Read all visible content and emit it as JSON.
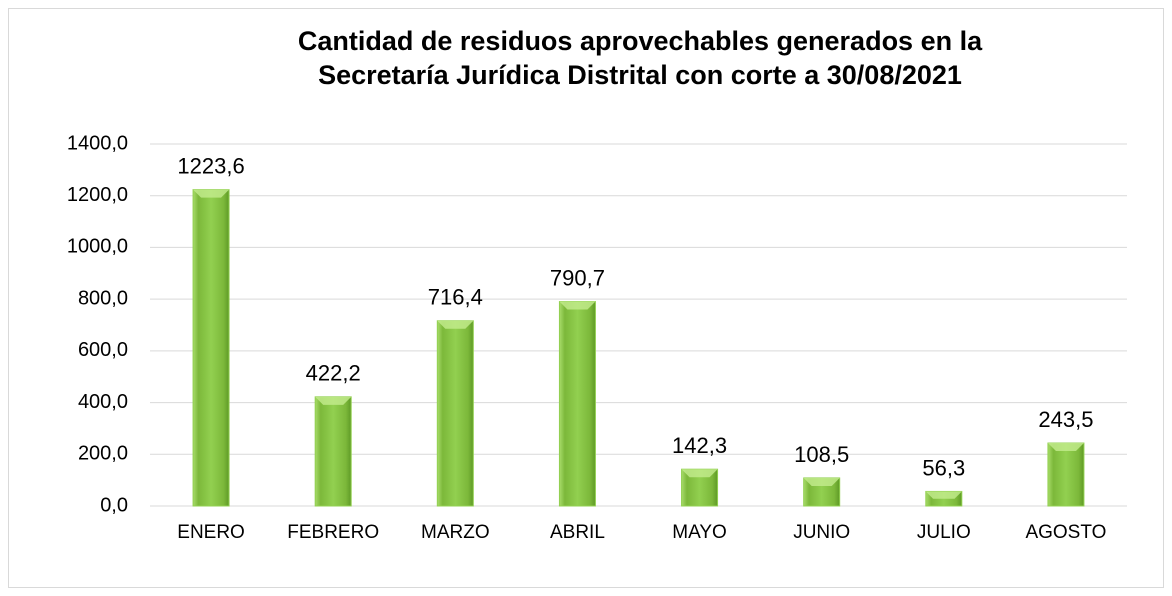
{
  "chart_data": {
    "type": "bar",
    "title": [
      "Cantidad de residuos aprovechables generados en la",
      "Secretaría Jurídica Distrital con corte a 30/08/2021"
    ],
    "categories": [
      "ENERO",
      "FEBRERO",
      "MARZO",
      "ABRIL",
      "MAYO",
      "JUNIO",
      "JULIO",
      "AGOSTO"
    ],
    "values": [
      1223.6,
      422.2,
      716.4,
      790.7,
      142.3,
      108.5,
      56.3,
      243.5
    ],
    "value_labels": [
      "1223,6",
      "422,2",
      "716,4",
      "790,7",
      "142,3",
      "108,5",
      "56,3",
      "243,5"
    ],
    "color": "#92d050",
    "ylim": [
      0,
      1400
    ],
    "yticks": [
      {
        "value": 0,
        "label": "0,0"
      },
      {
        "value": 200,
        "label": "200,0"
      },
      {
        "value": 400,
        "label": "400,0"
      },
      {
        "value": 600,
        "label": "600,0"
      },
      {
        "value": 800,
        "label": "800,0"
      },
      {
        "value": 1000,
        "label": "1000,0"
      },
      {
        "value": 1200,
        "label": "1200,0"
      },
      {
        "value": 1400,
        "label": "1400,0"
      }
    ],
    "grid": true
  }
}
